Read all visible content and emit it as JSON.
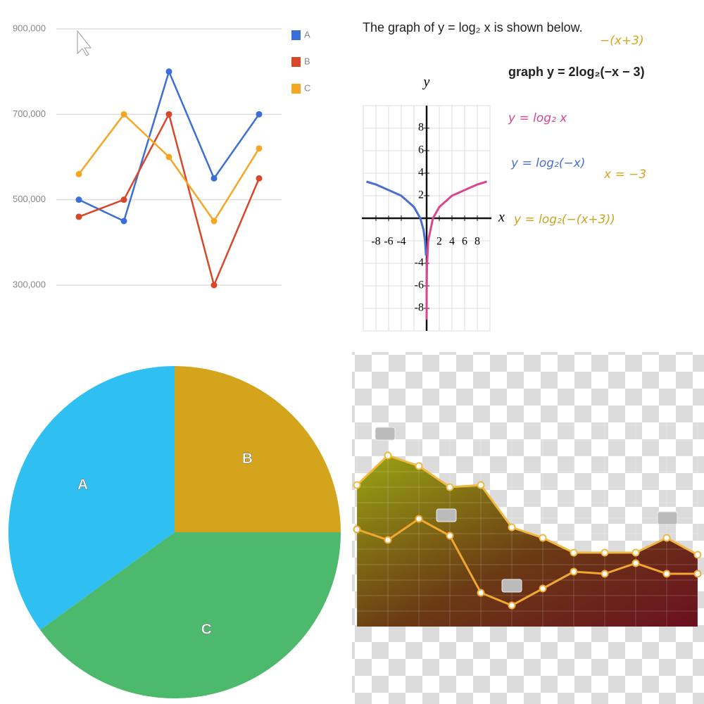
{
  "chart_data": [
    {
      "type": "line",
      "categories": [
        null,
        null,
        null,
        null,
        null
      ],
      "series": [
        {
          "name": "A",
          "color": "#3b6fd6",
          "values": [
            500000,
            450000,
            800000,
            550000,
            700000
          ]
        },
        {
          "name": "B",
          "color": "#d9472b",
          "values": [
            460000,
            500000,
            700000,
            300000,
            550000
          ]
        },
        {
          "name": "C",
          "color": "#f5a623",
          "values": [
            560000,
            700000,
            600000,
            450000,
            620000
          ]
        }
      ],
      "ylim": [
        300000,
        900000
      ],
      "yticks": [
        {
          "value": 300000,
          "label": "300,000"
        },
        {
          "value": 500000,
          "label": "500,000"
        },
        {
          "value": 700000,
          "label": "700,000"
        },
        {
          "value": 900000,
          "label": "900,000"
        }
      ],
      "grid": true,
      "legend": "right"
    },
    {
      "type": "line",
      "title": "The graph of y = log₂ x is shown below.",
      "xlabel": "x",
      "ylabel": "y",
      "series": [
        {
          "color": "#4a6fd0",
          "x": [
            -9.5,
            -8,
            -4,
            -2,
            -1,
            -0.5,
            -0.25,
            -0.1
          ],
          "values": [
            3.25,
            3,
            2,
            1,
            0,
            -1,
            -2,
            -3.3
          ]
        },
        {
          "color": "#d9458f",
          "x": [
            0.002,
            0.01,
            0.05,
            0.25,
            1,
            2,
            4,
            8,
            9.5
          ],
          "values": [
            -9,
            -6.6,
            -4.3,
            -2,
            0,
            1,
            2,
            3,
            3.25
          ]
        }
      ],
      "xlim": [
        -10,
        10
      ],
      "ylim": [
        -10,
        10
      ],
      "xticks": [
        -8,
        -6,
        -4,
        2,
        4,
        6,
        8
      ],
      "yticks": [
        8,
        6,
        4,
        2,
        -4,
        -6,
        -8
      ],
      "grid": true,
      "annotations": [
        {
          "text": "−(x+3)",
          "color": "#d9a520"
        },
        {
          "text": "graph y = 2log₂(−x − 3)",
          "color": "#222222"
        },
        {
          "text": "y = log₂ x",
          "color": "#d9458f"
        },
        {
          "text": "y = log₂(−x)",
          "color": "#4a6fd0"
        },
        {
          "text": "x = −3",
          "color": "#d9a520"
        },
        {
          "text": "y = log₂(−(x+3))",
          "color": "#c9a520"
        }
      ]
    },
    {
      "type": "pie",
      "categories": [
        "A",
        "B",
        "C"
      ],
      "values": [
        35,
        25,
        40
      ],
      "colors": [
        "#2fbff0",
        "#d4a51c",
        "#4cb96c"
      ]
    },
    {
      "type": "area",
      "categories": [
        null,
        null,
        null,
        null,
        null,
        null,
        null,
        null,
        null,
        null,
        null,
        null
      ],
      "series": [
        {
          "style": "area",
          "color": "#f0b840",
          "values": [
            67,
            81,
            76,
            66,
            67,
            47,
            42,
            35,
            35,
            35,
            42,
            34
          ]
        },
        {
          "style": "line",
          "color": "#f0a830",
          "values": [
            46,
            41,
            51,
            43,
            16,
            10,
            18,
            26,
            25,
            30,
            25,
            25
          ]
        }
      ],
      "ylim": [
        0,
        100
      ]
    }
  ]
}
